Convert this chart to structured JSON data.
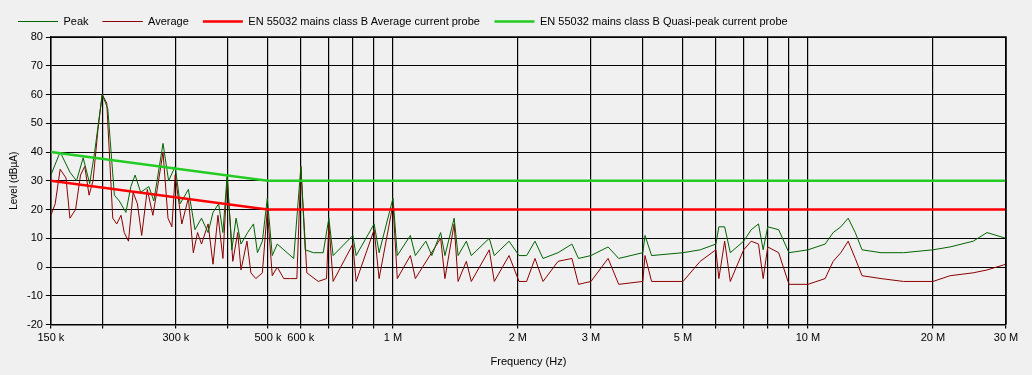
{
  "chart_data": {
    "type": "line",
    "xlabel": "Frequency (Hz)",
    "ylabel": "Level (dBµA)",
    "log": "x",
    "grid": true,
    "legend": "top left",
    "marker": "none",
    "line_style": "solid",
    "xlim": [
      150000,
      30000000
    ],
    "ylim": [
      -20,
      80
    ],
    "xticks": [
      {
        "value": 150000,
        "label": "150 k"
      },
      {
        "value": 200000,
        "label": null
      },
      {
        "value": 300000,
        "label": "300 k"
      },
      {
        "value": 400000,
        "label": null
      },
      {
        "value": 500000,
        "label": "500 k"
      },
      {
        "value": 600000,
        "label": "600 k"
      },
      {
        "value": 700000,
        "label": null
      },
      {
        "value": 800000,
        "label": null
      },
      {
        "value": 900000,
        "label": null
      },
      {
        "value": 1000000,
        "label": "1 M"
      },
      {
        "value": 2000000,
        "label": "2 M"
      },
      {
        "value": 3000000,
        "label": "3 M"
      },
      {
        "value": 4000000,
        "label": null
      },
      {
        "value": 5000000,
        "label": "5 M"
      },
      {
        "value": 6000000,
        "label": null
      },
      {
        "value": 7000000,
        "label": null
      },
      {
        "value": 8000000,
        "label": null
      },
      {
        "value": 9000000,
        "label": null
      },
      {
        "value": 10000000,
        "label": "10 M"
      },
      {
        "value": 20000000,
        "label": "20 M"
      },
      {
        "value": 30000000,
        "label": "30 M"
      }
    ],
    "yticks": [
      -20,
      -10,
      0,
      10,
      20,
      30,
      40,
      50,
      60,
      70,
      80
    ],
    "series": [
      {
        "name": "Peak",
        "color": "#006400",
        "x": [
          150000,
          157900,
          166700,
          172900,
          179400,
          186000,
          191200,
          199400,
          205700,
          213300,
          219200,
          227400,
          233700,
          239300,
          246800,
          258300,
          265500,
          279400,
          288200,
          298900,
          307200,
          321600,
          333600,
          345900,
          358800,
          368700,
          380400,
          389500,
          398800,
          409200,
          419000,
          430600,
          446700,
          461500,
          471800,
          484800,
          498300,
          512200,
          526400,
          556000,
          576800,
          600300,
          614800,
          643400,
          679500,
          701000,
          717800,
          800900,
          815600,
          901300,
          926400,
          1000800,
          1024800,
          1102000,
          1132700,
          1200800,
          1241000,
          1303500,
          1334700,
          1404700,
          1435800,
          1503000,
          1545000,
          1707000,
          1755000,
          1905000,
          2013000,
          2100000,
          2200000,
          2300000,
          2500000,
          2700000,
          2800000,
          3000000,
          3300000,
          3500000,
          4000000,
          4050000,
          4200000,
          5000000,
          5500000,
          6000000,
          6100000,
          6300000,
          6500000,
          7000000,
          7300000,
          7600000,
          7800000,
          8000000,
          8500000,
          9000000,
          10000000,
          11000000,
          11500000,
          12000000,
          12500000,
          13000000,
          13500000,
          15000000,
          17000000,
          20000000,
          22000000,
          25000000,
          27000000,
          30000000
        ],
        "values": [
          32,
          40,
          33,
          30,
          38,
          29,
          40,
          60,
          55,
          25,
          23,
          19,
          28,
          32,
          26,
          28,
          23,
          43,
          30,
          35,
          22,
          27,
          13,
          17,
          12,
          19,
          22,
          12,
          32,
          6,
          17,
          8,
          12,
          15,
          5,
          9,
          24,
          4,
          8,
          5,
          3,
          35,
          6,
          5,
          5,
          17,
          4,
          11,
          4,
          15,
          5,
          24,
          4,
          11,
          4,
          9,
          4,
          12,
          4,
          17,
          4,
          9,
          4,
          10,
          4,
          9,
          4,
          4,
          9,
          3,
          5,
          8,
          3,
          4,
          7,
          3,
          5,
          11,
          4,
          5,
          6,
          8,
          14,
          14,
          5,
          9,
          13,
          15,
          6,
          14,
          13,
          5,
          6,
          8,
          12,
          14,
          17,
          12,
          6,
          5,
          5,
          6,
          7,
          9,
          12,
          10
        ]
      },
      {
        "name": "Average",
        "color": "#8b0000",
        "x": [
          150000,
          153600,
          157900,
          163100,
          166700,
          172000,
          176800,
          181000,
          185400,
          189500,
          194800,
          199400,
          204500,
          211400,
          216100,
          221300,
          225300,
          230700,
          236700,
          242400,
          248200,
          256100,
          264100,
          270500,
          279400,
          287200,
          293500,
          298900,
          310100,
          321600,
          330500,
          338400,
          345900,
          358800,
          368700,
          379000,
          389500,
          398800,
          411500,
          422900,
          430600,
          445100,
          454900,
          467500,
          484800,
          498300,
          512200,
          526400,
          545900,
          566200,
          587100,
          600300,
          620400,
          661200,
          692000,
          701000,
          717800,
          800900,
          815600,
          901300,
          926400,
          1000800,
          1024800,
          1102000,
          1132700,
          1303500,
          1334700,
          1404700,
          1435800,
          1503000,
          1545000,
          1707000,
          1755000,
          1905000,
          2013000,
          2100000,
          2200000,
          2300000,
          2500000,
          2700000,
          2800000,
          3000000,
          3300000,
          3500000,
          4000000,
          4050000,
          4200000,
          5000000,
          5500000,
          6000000,
          6100000,
          6300000,
          6500000,
          7000000,
          7300000,
          7600000,
          7800000,
          8000000,
          8500000,
          9000000,
          10000000,
          11000000,
          11500000,
          12000000,
          12500000,
          13000000,
          13500000,
          15000000,
          17000000,
          20000000,
          22000000,
          25000000,
          27000000,
          30000000
        ],
        "values": [
          18,
          22,
          34,
          31,
          17,
          20,
          32,
          35,
          25,
          30,
          48,
          60,
          57,
          17,
          15,
          18,
          12,
          9,
          26,
          22,
          11,
          27,
          18,
          27,
          40,
          17,
          14,
          32,
          15,
          24,
          5,
          12,
          8,
          15,
          1,
          18,
          3,
          31,
          2,
          12,
          -1,
          9,
          -2,
          -4,
          -2,
          20,
          -3,
          0,
          -4,
          -4,
          -4,
          35,
          -2,
          -5,
          -4,
          15,
          -5,
          8,
          -5,
          13,
          -4,
          22,
          -4,
          4,
          -4,
          10,
          -4,
          15,
          -5,
          2,
          -5,
          6,
          -5,
          4,
          -5,
          -5,
          3,
          -5,
          2,
          3,
          -6,
          -5,
          3,
          -6,
          -5,
          4,
          -5,
          -5,
          2,
          6,
          -4,
          9,
          -5,
          6,
          9,
          8,
          -4,
          7,
          5,
          -6,
          -6,
          -4,
          2,
          5,
          9,
          3,
          -3,
          -4,
          -5,
          -5,
          -3,
          -2,
          -1,
          1
        ]
      },
      {
        "name": "EN 55032 mains class B Average current probe",
        "color": "#ff0000",
        "x": [
          150000,
          500000,
          30000000
        ],
        "values": [
          30,
          20,
          20
        ]
      },
      {
        "name": "EN 55032 mains class B Quasi-peak current probe",
        "color": "#22cc22",
        "x": [
          150000,
          500000,
          30000000
        ],
        "values": [
          40,
          30,
          30
        ]
      }
    ]
  }
}
